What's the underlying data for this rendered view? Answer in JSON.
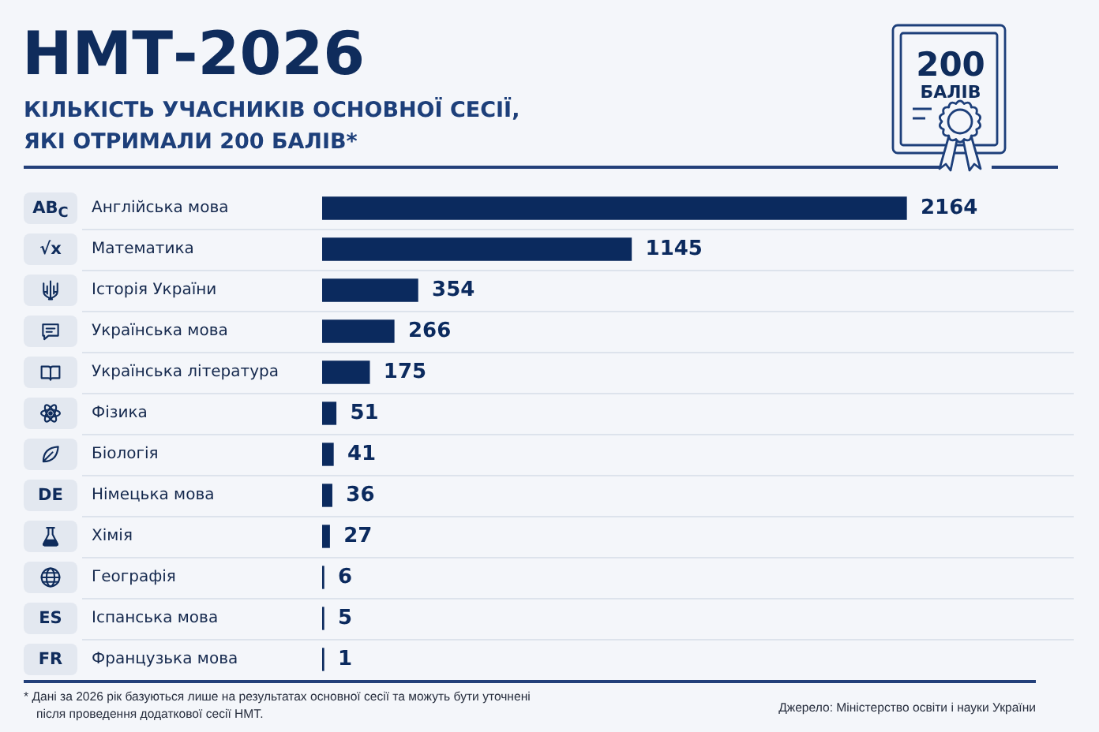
{
  "chart_data": {
    "type": "bar",
    "orientation": "horizontal",
    "title": "НМТ-2026",
    "subtitle": "КІЛЬКІСТЬ УЧАСНИКІВ ОСНОВНОЇ СЕСІЇ, ЯКІ ОТРИМАЛИ 200 БАЛІВ*",
    "categories": [
      "Англійська мова",
      "Математика",
      "Історія України",
      "Українська мова",
      "Українська література",
      "Фізика",
      "Біологія",
      "Німецька мова",
      "Хімія",
      "Географія",
      "Іспанська мова",
      "Французька мова"
    ],
    "values": [
      2164,
      1145,
      354,
      266,
      175,
      51,
      41,
      36,
      27,
      6,
      5,
      1
    ],
    "color": "#0b2a5e",
    "data_labels": true,
    "grid": "y",
    "tick_labels": "y",
    "annotations": [
      "AB$_{C}$",
      "√x",
      "DE",
      "ES",
      "FR",
      "200",
      "БАЛІВ",
      "* Дані за 2026 рік базуються лише на результатах основної сесії та можуть бути уточнені після проведення додаткової сесії НМТ.",
      "Джерело: Міністерство освіти і науки України"
    ]
  }
}
